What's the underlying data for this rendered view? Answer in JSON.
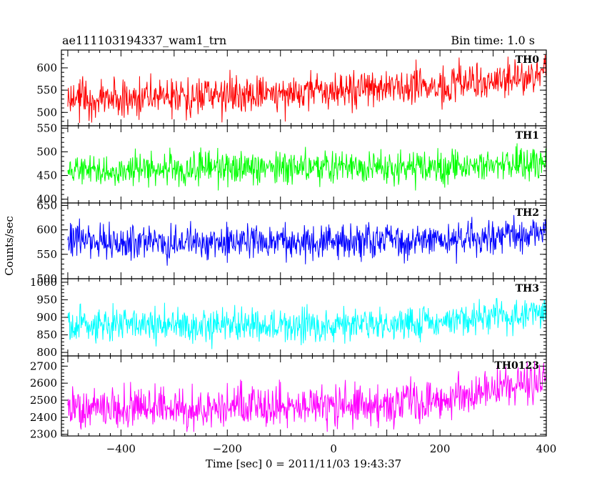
{
  "chart_data": {
    "type": "line",
    "title": "ae111103194337_wam1_trn",
    "subtitle": "Bin time: 1.0 s",
    "xlabel": "Time [sec] 0 = 2011/11/03 19:43:37",
    "ylabel": "Counts/sec",
    "xlim": [
      -512,
      400
    ],
    "xticks": [
      -400,
      -200,
      0,
      200,
      400
    ],
    "xtick_labels": [
      "−400",
      "−200",
      "0",
      "200",
      "400"
    ],
    "grid": false,
    "panels": [
      {
        "name": "TH0",
        "color": "#ff0000",
        "ylim": [
          470,
          640
        ],
        "yticks": [
          500,
          550,
          600
        ],
        "ytick_labels": [
          "500",
          "550",
          "600"
        ],
        "trend": [
          [
            -512,
            535
          ],
          [
            -300,
            535
          ],
          [
            0,
            545
          ],
          [
            200,
            560
          ],
          [
            400,
            585
          ]
        ],
        "noise_amplitude": 40,
        "x_range": [
          -500,
          400
        ]
      },
      {
        "name": "TH1",
        "color": "#00ff00",
        "ylim": [
          392,
          555
        ],
        "yticks": [
          400,
          450,
          500,
          550
        ],
        "ytick_labels": [
          "400",
          "450",
          "500",
          "550"
        ],
        "trend": [
          [
            -512,
            462
          ],
          [
            0,
            465
          ],
          [
            200,
            468
          ],
          [
            400,
            475
          ]
        ],
        "noise_amplitude": 32,
        "x_range": [
          -500,
          400
        ]
      },
      {
        "name": "TH2",
        "color": "#0000ff",
        "ylim": [
          500,
          655
        ],
        "yticks": [
          500,
          550,
          600,
          650
        ],
        "ytick_labels": [
          "500",
          "550",
          "600",
          "650"
        ],
        "trend": [
          [
            -512,
            575
          ],
          [
            0,
            575
          ],
          [
            200,
            580
          ],
          [
            400,
            592
          ]
        ],
        "noise_amplitude": 32,
        "x_range": [
          -500,
          400
        ]
      },
      {
        "name": "TH3",
        "color": "#00ffff",
        "ylim": [
          790,
          1010
        ],
        "yticks": [
          800,
          850,
          900,
          950,
          1000
        ],
        "ytick_labels": [
          "800",
          "850",
          "900",
          "950",
          "1000"
        ],
        "trend": [
          [
            -512,
            880
          ],
          [
            0,
            878
          ],
          [
            200,
            890
          ],
          [
            400,
            912
          ]
        ],
        "noise_amplitude": 45,
        "x_range": [
          -500,
          400
        ]
      },
      {
        "name": "TH0123",
        "color": "#ff00ff",
        "ylim": [
          2290,
          2760
        ],
        "yticks": [
          2300,
          2400,
          2500,
          2600,
          2700
        ],
        "ytick_labels": [
          "2300",
          "2400",
          "2500",
          "2600",
          "2700"
        ],
        "trend": [
          [
            -512,
            2445
          ],
          [
            0,
            2460
          ],
          [
            200,
            2500
          ],
          [
            400,
            2610
          ]
        ],
        "noise_amplitude": 110,
        "x_range": [
          -500,
          400
        ]
      }
    ]
  }
}
